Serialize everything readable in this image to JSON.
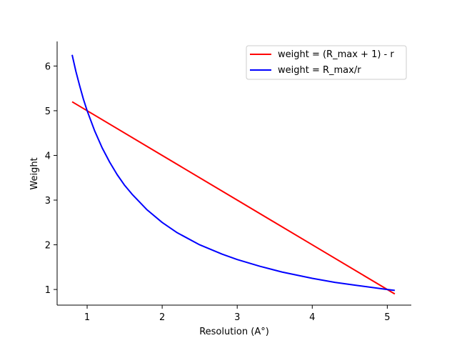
{
  "chart_data": {
    "type": "line",
    "title": "",
    "xlabel": "Resolution (A°)",
    "ylabel": "Weight",
    "xlim": [
      0.6,
      5.32
    ],
    "ylim": [
      0.65,
      6.55
    ],
    "x_ticks": [
      1,
      2,
      3,
      4,
      5
    ],
    "y_ticks": [
      1,
      2,
      3,
      4,
      5,
      6
    ],
    "grid": false,
    "legend_position": "top-right",
    "series": [
      {
        "name": "weight = (R_max + 1) - r",
        "color": "#ff0000",
        "x": [
          0.8,
          1.0,
          2.0,
          3.0,
          4.0,
          5.0,
          5.1
        ],
        "y": [
          5.2,
          5.0,
          4.0,
          3.0,
          2.0,
          1.0,
          0.9
        ]
      },
      {
        "name": "weight = R_max/r",
        "color": "#0000ff",
        "x": [
          0.8,
          0.85,
          0.9,
          0.95,
          1.0,
          1.1,
          1.2,
          1.3,
          1.4,
          1.5,
          1.6,
          1.8,
          2.0,
          2.2,
          2.5,
          2.8,
          3.0,
          3.3,
          3.6,
          4.0,
          4.3,
          4.6,
          5.0,
          5.1
        ],
        "y": [
          6.25,
          5.88,
          5.56,
          5.26,
          5.0,
          4.55,
          4.17,
          3.85,
          3.57,
          3.33,
          3.13,
          2.78,
          2.5,
          2.27,
          2.0,
          1.79,
          1.67,
          1.52,
          1.39,
          1.25,
          1.16,
          1.09,
          1.0,
          0.98
        ]
      }
    ]
  }
}
